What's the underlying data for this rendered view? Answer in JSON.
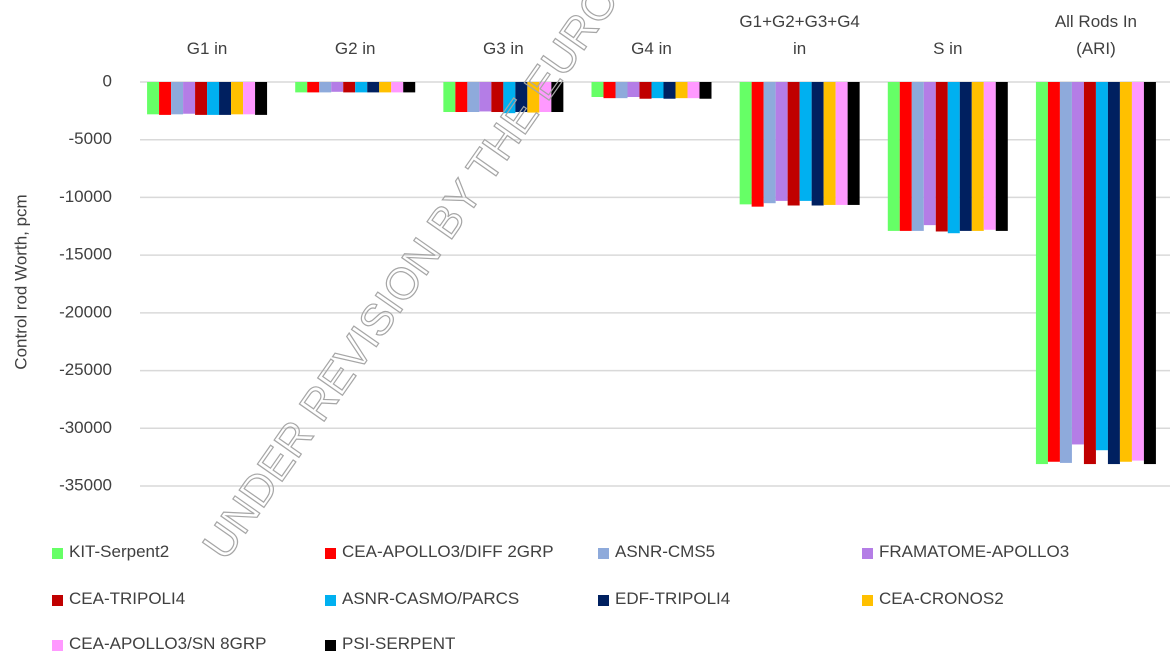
{
  "chart_data": {
    "type": "bar",
    "y_label": "Control rod Worth, pcm",
    "annotation": "UNDER REVISION BY THE EUROPE",
    "categories": [
      "G1 in",
      "G2 in",
      "G3 in",
      "G4 in",
      "G1+G2+G3+G4 in",
      "S in",
      "All Rods In (ARI)"
    ],
    "ylim": [
      -35000,
      0
    ],
    "yticks": [
      0,
      -5000,
      -10000,
      -15000,
      -20000,
      -25000,
      -30000,
      -35000
    ],
    "grid": true,
    "legend": "bottom",
    "series": [
      {
        "name": "KIT-Serpent2",
        "color": "#66ff66",
        "values": [
          -2800,
          -900,
          -2600,
          -1300,
          -10600,
          -12900,
          -33100
        ]
      },
      {
        "name": "CEA-APOLLO3/DIFF 2GRP",
        "color": "#ff0000",
        "values": [
          -2850,
          -900,
          -2600,
          -1400,
          -10800,
          -12900,
          -32900
        ]
      },
      {
        "name": "ASNR-CMS5",
        "color": "#8eaadb",
        "values": [
          -2800,
          -900,
          -2600,
          -1400,
          -10500,
          -12900,
          -33000
        ]
      },
      {
        "name": "FRAMATOME-APOLLO3",
        "color": "#b47de6",
        "values": [
          -2750,
          -850,
          -2550,
          -1300,
          -10300,
          -12400,
          -31400
        ]
      },
      {
        "name": "CEA-TRIPOLI4",
        "color": "#c00000",
        "values": [
          -2850,
          -900,
          -2600,
          -1450,
          -10700,
          -12950,
          -33100
        ]
      },
      {
        "name": "ASNR-CASMO/PARCS",
        "color": "#00b0f0",
        "values": [
          -2850,
          -900,
          -2700,
          -1400,
          -10300,
          -13100,
          -31900
        ]
      },
      {
        "name": "EDF-TRIPOLI4",
        "color": "#002060",
        "values": [
          -2850,
          -900,
          -2600,
          -1450,
          -10700,
          -12900,
          -33100
        ]
      },
      {
        "name": "CEA-CRONOS2",
        "color": "#ffc000",
        "values": [
          -2800,
          -900,
          -2650,
          -1400,
          -10650,
          -12900,
          -32900
        ]
      },
      {
        "name": "CEA-APOLLO3/SN 8GRP",
        "color": "#ff99ff",
        "values": [
          -2800,
          -900,
          -2600,
          -1400,
          -10650,
          -12800,
          -32800
        ]
      },
      {
        "name": "PSI-SERPENT",
        "color": "#000000",
        "values": [
          -2850,
          -900,
          -2600,
          -1450,
          -10650,
          -12900,
          -33100
        ]
      }
    ]
  }
}
